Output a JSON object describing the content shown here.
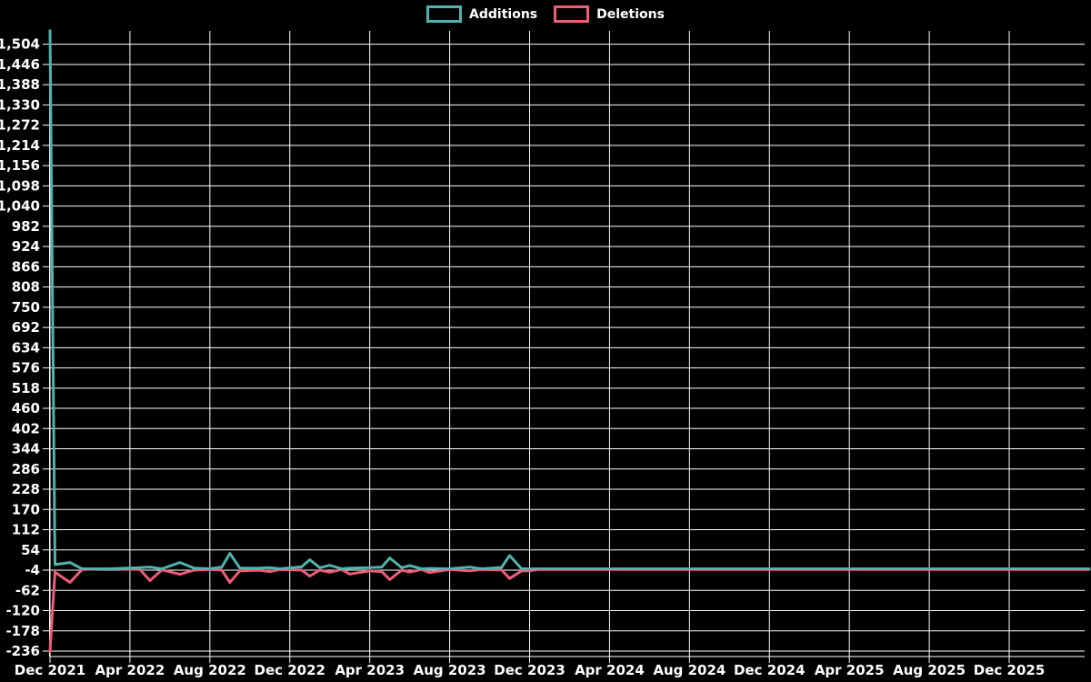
{
  "legend": {
    "items": [
      {
        "label": "Additions",
        "color": "#4fb3ae"
      },
      {
        "label": "Deletions",
        "color": "#ee5c76"
      }
    ]
  },
  "chart_data": {
    "type": "line",
    "title": "",
    "xlabel": "",
    "ylabel": "",
    "background": "#000000",
    "grid": true,
    "grid_color": "#ffffff",
    "axis_color": "#ffffff",
    "text_color": "#ffffff",
    "legend_position": "top-center",
    "x_unit": "months since Dec 2021",
    "xlim": [
      0,
      52
    ],
    "ylim": [
      -252,
      1543
    ],
    "y_ticks": [
      -236,
      -178,
      -120,
      -62,
      -4,
      54,
      112,
      170,
      228,
      286,
      344,
      402,
      460,
      518,
      576,
      634,
      692,
      750,
      808,
      866,
      924,
      982,
      1040,
      1098,
      1156,
      1214,
      1272,
      1330,
      1388,
      1446,
      1504
    ],
    "y_tick_labels": [
      "-236",
      "-178",
      "-120",
      "-62",
      "-4",
      "54",
      "112",
      "170",
      "228",
      "286",
      "344",
      "402",
      "460",
      "518",
      "576",
      "634",
      "692",
      "750",
      "808",
      "866",
      "924",
      "982",
      "1,040",
      "1,098",
      "1,156",
      "1,214",
      "1,272",
      "1,330",
      "1,388",
      "1,446",
      "1,504"
    ],
    "x_ticks": [
      0,
      4,
      8,
      12,
      16,
      20,
      24,
      28,
      32,
      36,
      40,
      44,
      48
    ],
    "x_tick_labels": [
      "Dec 2021",
      "Apr 2022",
      "Aug 2022",
      "Dec 2022",
      "Apr 2023",
      "Aug 2023",
      "Dec 2023",
      "Apr 2024",
      "Aug 2024",
      "Dec 2024",
      "Apr 2025",
      "Aug 2025",
      "Dec 2025"
    ],
    "series": [
      {
        "name": "Additions",
        "color": "#4fb3ae",
        "points": [
          [
            0,
            1543
          ],
          [
            0.25,
            12
          ],
          [
            1,
            18
          ],
          [
            1.6,
            0
          ],
          [
            3,
            0
          ],
          [
            4.5,
            3
          ],
          [
            5,
            5
          ],
          [
            5.6,
            0
          ],
          [
            6.5,
            18
          ],
          [
            7.2,
            2
          ],
          [
            8,
            0
          ],
          [
            8.6,
            5
          ],
          [
            9,
            44
          ],
          [
            9.5,
            2
          ],
          [
            10.5,
            2
          ],
          [
            11,
            3
          ],
          [
            11.5,
            0
          ],
          [
            12.6,
            6
          ],
          [
            13,
            26
          ],
          [
            13.5,
            3
          ],
          [
            14,
            10
          ],
          [
            14.6,
            0
          ],
          [
            15,
            2
          ],
          [
            16,
            3
          ],
          [
            16.6,
            5
          ],
          [
            17,
            31
          ],
          [
            17.6,
            3
          ],
          [
            18,
            9
          ],
          [
            18.6,
            0
          ],
          [
            19,
            1
          ],
          [
            20,
            0
          ],
          [
            21,
            5
          ],
          [
            21.6,
            0
          ],
          [
            22.6,
            4
          ],
          [
            23,
            38
          ],
          [
            23.6,
            0
          ],
          [
            24,
            0
          ],
          [
            26,
            0
          ],
          [
            30,
            0
          ],
          [
            34,
            0
          ],
          [
            38,
            0
          ],
          [
            42,
            0
          ],
          [
            46,
            0
          ],
          [
            50,
            0
          ],
          [
            52,
            0
          ]
        ]
      },
      {
        "name": "Deletions",
        "color": "#ee5c76",
        "points": [
          [
            0,
            -236
          ],
          [
            0.25,
            -10
          ],
          [
            1,
            -39
          ],
          [
            1.6,
            -2
          ],
          [
            3,
            0
          ],
          [
            4.5,
            -2
          ],
          [
            5,
            -34
          ],
          [
            5.6,
            -3
          ],
          [
            6.5,
            -16
          ],
          [
            7.2,
            -4
          ],
          [
            8,
            -2
          ],
          [
            8.6,
            -4
          ],
          [
            9,
            -39
          ],
          [
            9.5,
            -6
          ],
          [
            10.5,
            -4
          ],
          [
            11,
            -8
          ],
          [
            11.5,
            -2
          ],
          [
            12.6,
            -4
          ],
          [
            13,
            -21
          ],
          [
            13.5,
            -4
          ],
          [
            14,
            -10
          ],
          [
            14.6,
            -2
          ],
          [
            15,
            -15
          ],
          [
            16,
            -6
          ],
          [
            16.6,
            -8
          ],
          [
            17,
            -31
          ],
          [
            17.6,
            -4
          ],
          [
            18,
            -9
          ],
          [
            18.6,
            -2
          ],
          [
            19,
            -11
          ],
          [
            20,
            -2
          ],
          [
            21,
            -6
          ],
          [
            21.6,
            -2
          ],
          [
            22.6,
            -3
          ],
          [
            23,
            -28
          ],
          [
            23.6,
            -6
          ],
          [
            24,
            -6
          ],
          [
            24.4,
            -2
          ],
          [
            26,
            -2
          ],
          [
            30,
            -2
          ],
          [
            34,
            -2
          ],
          [
            38,
            -2
          ],
          [
            42,
            -2
          ],
          [
            46,
            -2
          ],
          [
            50,
            -2
          ],
          [
            52,
            -2
          ]
        ]
      }
    ]
  }
}
